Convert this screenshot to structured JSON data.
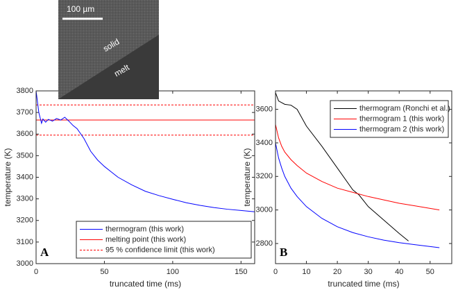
{
  "chart_data": [
    {
      "type": "line",
      "panel_label": "A",
      "xlabel": "truncated time (ms)",
      "ylabel": "temperature (K)",
      "xlim": [
        0,
        160
      ],
      "ylim": [
        3000,
        3800
      ],
      "xticks": [
        0,
        50,
        100,
        150
      ],
      "yticks": [
        3000,
        3100,
        3200,
        3300,
        3400,
        3500,
        3600,
        3700,
        3800
      ],
      "legend": "lower right",
      "inset_labels": [
        "100 µm",
        "solid",
        "melt"
      ],
      "series": [
        {
          "name": "thermogram (this work)",
          "color": "#0000ff",
          "x": [
            0,
            2,
            4,
            5,
            7,
            9,
            12,
            15,
            18,
            21,
            24,
            27,
            30,
            35,
            40,
            45,
            50,
            55,
            60,
            70,
            80,
            90,
            100,
            110,
            120,
            130,
            140,
            150,
            160
          ],
          "values": [
            3800,
            3700,
            3650,
            3670,
            3655,
            3668,
            3660,
            3672,
            3665,
            3678,
            3660,
            3640,
            3625,
            3580,
            3520,
            3480,
            3450,
            3425,
            3400,
            3365,
            3335,
            3315,
            3298,
            3282,
            3270,
            3260,
            3252,
            3246,
            3240
          ]
        }
      ],
      "reference_lines": [
        {
          "name": "melting point (this work)",
          "color": "#ff0000",
          "dash": false,
          "values": [
            3665
          ]
        },
        {
          "name": "95 % confidence limit (this work)",
          "color": "#ff0000",
          "dash": true,
          "values": [
            3735,
            3595
          ]
        }
      ]
    },
    {
      "type": "line",
      "panel_label": "B",
      "xlabel": "truncated time (ms)",
      "ylabel": "temperature (K)",
      "xlim": [
        0,
        57
      ],
      "ylim": [
        2680,
        3710
      ],
      "xticks": [
        0,
        10,
        20,
        30,
        40,
        50
      ],
      "yticks": [
        2800,
        3000,
        3200,
        3400,
        3600
      ],
      "legend": "upper right",
      "series": [
        {
          "name": "thermogram (Ronchi et al.)",
          "color": "#000000",
          "x": [
            0,
            1,
            3,
            5,
            7,
            10,
            15,
            20,
            25,
            27,
            30,
            35,
            40,
            43
          ],
          "values": [
            3700,
            3650,
            3630,
            3625,
            3600,
            3500,
            3380,
            3250,
            3120,
            3090,
            3020,
            2940,
            2860,
            2815
          ]
        },
        {
          "name": "thermogram 1 (this work)",
          "color": "#ff0000",
          "x": [
            0,
            1,
            2,
            3,
            5,
            7,
            10,
            15,
            20,
            25,
            30,
            35,
            40,
            45,
            53
          ],
          "values": [
            3510,
            3430,
            3380,
            3345,
            3300,
            3265,
            3220,
            3170,
            3130,
            3105,
            3080,
            3060,
            3040,
            3025,
            3000
          ]
        },
        {
          "name": "thermogram 2 (this work)",
          "color": "#0000ff",
          "x": [
            0,
            1,
            2,
            3,
            5,
            7,
            10,
            15,
            20,
            25,
            30,
            35,
            40,
            45,
            53
          ],
          "values": [
            3400,
            3310,
            3250,
            3200,
            3130,
            3080,
            3020,
            2950,
            2900,
            2865,
            2840,
            2820,
            2805,
            2793,
            2775
          ]
        }
      ]
    }
  ]
}
